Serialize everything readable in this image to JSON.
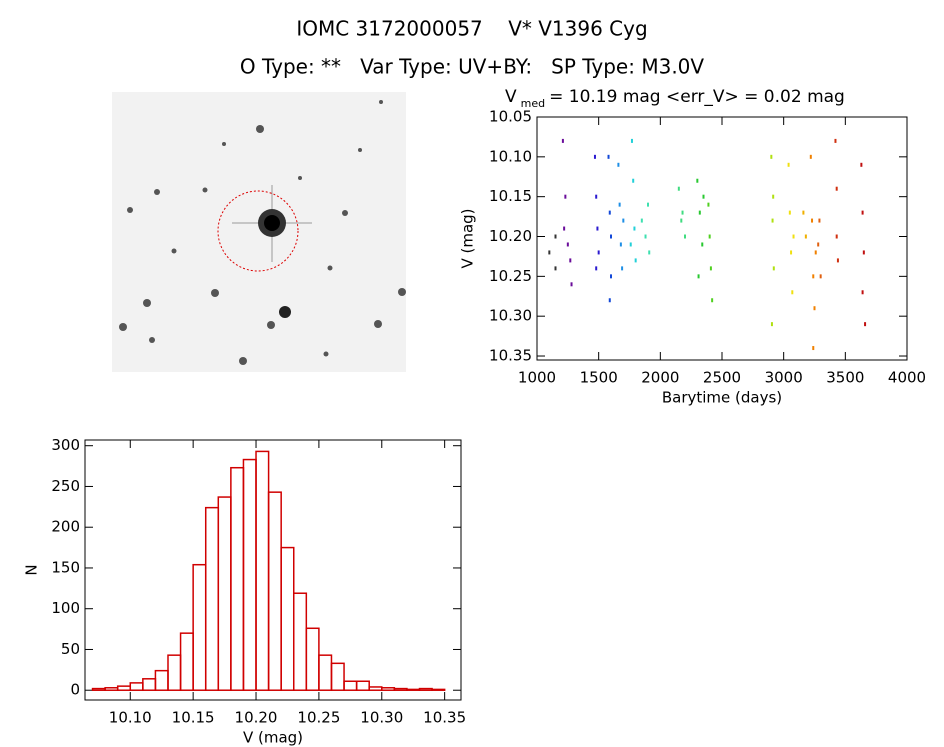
{
  "header": {
    "title": "IOMC 3172000057    V* V1396 Cyg",
    "subtitle": "O Type: **   Var Type: UV+BY:   SP Type: M3.0V"
  },
  "chart_data": [
    {
      "type": "scatter",
      "title": "V",
      "title_subscript": "med",
      "title_rest": "= 10.19 mag <err_V> = 0.02 mag",
      "x_label": "Barytime (days)",
      "y_label": "V (mag)",
      "xlim": [
        1000,
        4000
      ],
      "ylim": [
        10.05,
        10.355
      ],
      "y_inverted": true,
      "xticks": [
        1000,
        1500,
        2000,
        2500,
        3000,
        3500,
        4000
      ],
      "yticks": [
        10.05,
        {
          "value": 10.1,
          "label": "10.10"
        },
        10.15,
        {
          "value": 10.2,
          "label": "10.20"
        },
        10.25,
        {
          "value": 10.3,
          "label": "10.30"
        },
        10.35
      ],
      "series": [
        {
          "color": "#333333",
          "x": [
            1100,
            1150,
            1150
          ],
          "values": [
            10.22,
            10.24,
            10.2
          ]
        },
        {
          "color": "#6a0d9a",
          "x": [
            1210,
            1220,
            1230,
            1250,
            1280,
            1270
          ],
          "values": [
            10.08,
            10.19,
            10.15,
            10.21,
            10.26,
            10.23
          ]
        },
        {
          "color": "#2b1ad0",
          "x": [
            1470,
            1480,
            1490,
            1500,
            1480
          ],
          "values": [
            10.1,
            10.15,
            10.19,
            10.22,
            10.24
          ]
        },
        {
          "color": "#1248d8",
          "x": [
            1580,
            1590,
            1600,
            1590,
            1600
          ],
          "values": [
            10.1,
            10.17,
            10.25,
            10.28,
            10.2
          ]
        },
        {
          "color": "#1e8fe6",
          "x": [
            1660,
            1670,
            1680,
            1690,
            1700
          ],
          "values": [
            10.11,
            10.16,
            10.21,
            10.24,
            10.18
          ]
        },
        {
          "color": "#22d0d8",
          "x": [
            1770,
            1780,
            1790,
            1800,
            1760
          ],
          "values": [
            10.08,
            10.13,
            10.19,
            10.23,
            10.21
          ]
        },
        {
          "color": "#3ee0b0",
          "x": [
            1850,
            1880,
            1900,
            1910
          ],
          "values": [
            10.18,
            10.2,
            10.16,
            10.22
          ]
        },
        {
          "color": "#40dc80",
          "x": [
            2150,
            2170,
            2200,
            2180
          ],
          "values": [
            10.14,
            10.18,
            10.2,
            10.17
          ]
        },
        {
          "color": "#28c830",
          "x": [
            2300,
            2320,
            2340,
            2310,
            2350
          ],
          "values": [
            10.13,
            10.17,
            10.21,
            10.25,
            10.15
          ]
        },
        {
          "color": "#50d020",
          "x": [
            2390,
            2400,
            2410,
            2420
          ],
          "values": [
            10.16,
            10.2,
            10.24,
            10.28
          ]
        },
        {
          "color": "#b0e010",
          "x": [
            2900,
            2910,
            2920,
            2905,
            2915
          ],
          "values": [
            10.1,
            10.18,
            10.24,
            10.31,
            10.15
          ]
        },
        {
          "color": "#f0e010",
          "x": [
            3040,
            3050,
            3060,
            3070,
            3080
          ],
          "values": [
            10.11,
            10.17,
            10.22,
            10.27,
            10.2
          ]
        },
        {
          "color": "#f0b000",
          "x": [
            3160,
            3180
          ],
          "values": [
            10.17,
            10.2
          ]
        },
        {
          "color": "#f08000",
          "x": [
            3220,
            3230,
            3240,
            3240,
            3250,
            3260
          ],
          "values": [
            10.1,
            10.18,
            10.25,
            10.34,
            10.29,
            10.22
          ]
        },
        {
          "color": "#e06010",
          "x": [
            3280,
            3300,
            3290
          ],
          "values": [
            10.21,
            10.25,
            10.18
          ]
        },
        {
          "color": "#d03010",
          "x": [
            3420,
            3430,
            3430,
            3440
          ],
          "values": [
            10.08,
            10.14,
            10.2,
            10.23
          ]
        },
        {
          "color": "#c01010",
          "x": [
            3630,
            3640,
            3650,
            3640,
            3660
          ],
          "values": [
            10.11,
            10.17,
            10.22,
            10.27,
            10.31
          ]
        }
      ]
    },
    {
      "type": "histogram",
      "color": "#d00000",
      "x_label": "V (mag)",
      "y_label": "N",
      "xlim": [
        10.064,
        10.363
      ],
      "ylim": [
        -12,
        307
      ],
      "xticks": [
        {
          "value": 10.1,
          "label": "10.10"
        },
        10.15,
        {
          "value": 10.2,
          "label": "10.20"
        },
        10.25,
        {
          "value": 10.3,
          "label": "10.30"
        },
        10.35
      ],
      "yticks": [
        0,
        50,
        100,
        150,
        200,
        250,
        300
      ],
      "bins": [
        10.07,
        10.08,
        10.09,
        10.1,
        10.11,
        10.12,
        10.13,
        10.14,
        10.15,
        10.16,
        10.17,
        10.18,
        10.19,
        10.2,
        10.21,
        10.22,
        10.23,
        10.24,
        10.25,
        10.26,
        10.27,
        10.28,
        10.29,
        10.3,
        10.31,
        10.32,
        10.33,
        10.34,
        10.35
      ],
      "values": [
        2,
        3,
        5,
        9,
        14,
        24,
        43,
        70,
        154,
        224,
        237,
        273,
        283,
        293,
        243,
        175,
        119,
        76,
        43,
        33,
        11,
        11,
        4,
        3,
        2,
        1,
        2,
        1
      ]
    }
  ]
}
